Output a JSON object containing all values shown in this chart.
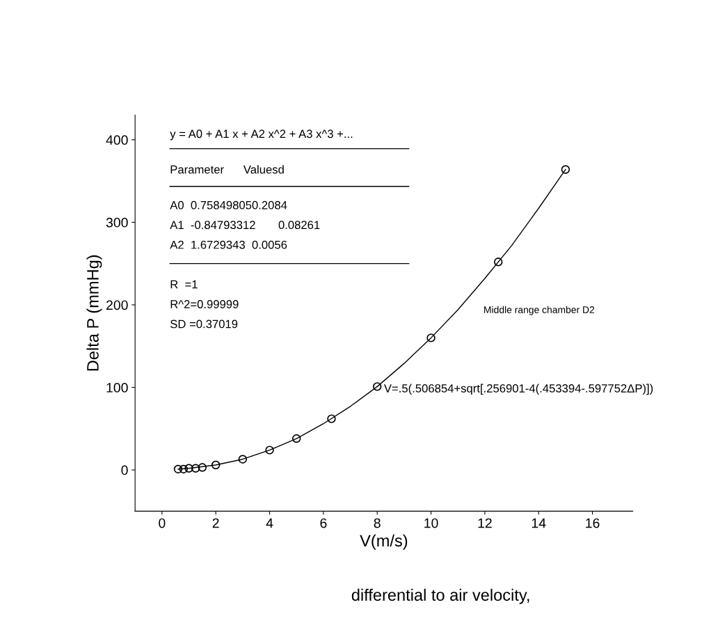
{
  "chart_data": {
    "type": "scatter",
    "xlabel": "V(m/s)",
    "ylabel": "Delta P (mmHg)",
    "x": [
      0.6,
      0.8,
      1.0,
      1.25,
      1.5,
      2,
      3,
      4,
      5,
      6.3,
      8,
      10,
      12.5,
      15
    ],
    "series": [
      {
        "color": "#000000",
        "marker": "circle",
        "values": [
          1,
          1,
          2,
          2,
          3,
          6,
          13,
          24,
          38,
          62,
          101,
          160,
          252,
          364
        ]
      },
      {
        "type": "line",
        "color": "#000000",
        "x": [
          0.6,
          1,
          2,
          3,
          4,
          5,
          6,
          7,
          8,
          9,
          10,
          11,
          12,
          13,
          14,
          15
        ],
        "values": [
          1,
          2,
          6,
          13,
          24,
          38,
          56,
          77,
          101,
          129,
          160,
          194,
          232,
          272,
          317,
          364
        ]
      }
    ],
    "xlim": [
      -1,
      17.5
    ],
    "ylim": [
      -50,
      430
    ],
    "xticks": [
      0,
      2,
      4,
      6,
      8,
      10,
      12,
      14,
      16
    ],
    "yticks": [
      0,
      100,
      200,
      300,
      400
    ],
    "grid": false,
    "annotations": [
      "y = A0 + A1 x + A2 x^2 + A3 x^3 +...",
      "Parameter      Valuesd",
      "A0  0.758498050.2084",
      "A1  -0.84793312       0.08261",
      "A2  1.6729343  0.0056",
      "R  =1",
      "R^2=0.99999",
      "SD =0.37019",
      "Middle range chamber D2",
      "V=.5(.506854+sqrt[.256901-4(.453394-.597752ΔP)])",
      "differential to air velocity,"
    ]
  }
}
